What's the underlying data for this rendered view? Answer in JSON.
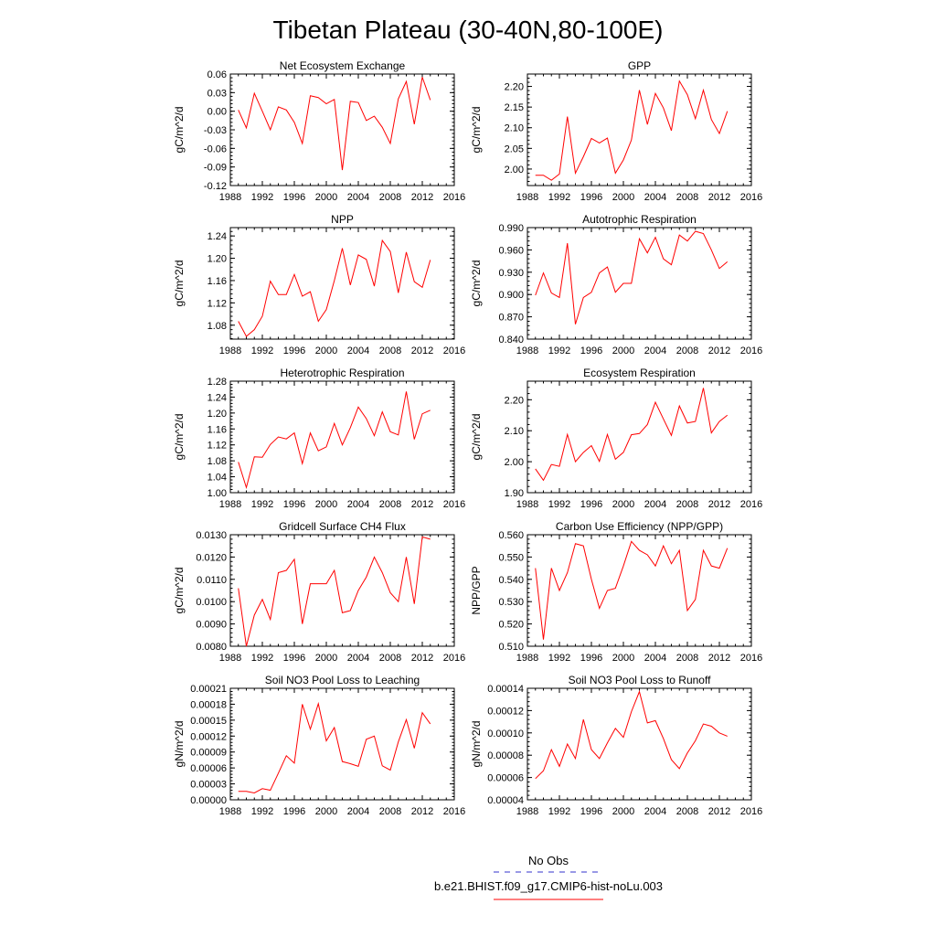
{
  "figure": {
    "title": "Tibetan Plateau (30-40N,80-100E)"
  },
  "colors": {
    "series_line": "#ff0000",
    "obs_line": "#3333cc",
    "frame": "#000000"
  },
  "legend": {
    "obs_label": "No Obs",
    "model_label": "b.e21.BHIST.f09_g17.CMIP6-hist-noLu.003"
  },
  "chart_data": [
    {
      "type": "line",
      "title": "Net Ecosystem Exchange",
      "ylabel": "gC/m^2/d",
      "xlabel": "",
      "xlim": [
        1988,
        2016
      ],
      "ylim": [
        -0.12,
        0.06
      ],
      "xticks": [
        1988,
        1992,
        1996,
        2000,
        2004,
        2008,
        2012,
        2016
      ],
      "xtick_labels": [
        "1988",
        "1992",
        "1996",
        "2000",
        "2004",
        "2008",
        "2012",
        "2016"
      ],
      "yticks": [
        -0.12,
        -0.09,
        -0.06,
        -0.03,
        0.0,
        0.03,
        0.06
      ],
      "ytick_labels": [
        "-0.12",
        "-0.09",
        "-0.06",
        "-0.03",
        "0.00",
        "0.03",
        "0.06"
      ],
      "x": [
        1989,
        1990,
        1991,
        1992,
        1993,
        1994,
        1995,
        1996,
        1997,
        1998,
        1999,
        2000,
        2001,
        2002,
        2003,
        2004,
        2005,
        2006,
        2007,
        2008,
        2009,
        2010,
        2011,
        2012,
        2013
      ],
      "values": [
        0.002,
        -0.027,
        0.029,
        0.0,
        -0.03,
        0.007,
        0.002,
        -0.018,
        -0.052,
        0.025,
        0.022,
        0.012,
        0.019,
        -0.095,
        0.016,
        0.014,
        -0.015,
        -0.008,
        -0.026,
        -0.052,
        0.02,
        0.048,
        -0.021,
        0.055,
        0.018
      ]
    },
    {
      "type": "line",
      "title": "GPP",
      "ylabel": "gC/m^2/d",
      "xlabel": "",
      "xlim": [
        1988,
        2016
      ],
      "ylim": [
        1.96,
        2.23
      ],
      "xticks": [
        1988,
        1992,
        1996,
        2000,
        2004,
        2008,
        2012,
        2016
      ],
      "xtick_labels": [
        "1988",
        "1992",
        "1996",
        "2000",
        "2004",
        "2008",
        "2012",
        "2016"
      ],
      "yticks": [
        2.0,
        2.05,
        2.1,
        2.15,
        2.2
      ],
      "ytick_labels": [
        "2.00",
        "2.05",
        "2.10",
        "2.15",
        "2.20"
      ],
      "x": [
        1989,
        1990,
        1991,
        1992,
        1993,
        1994,
        1995,
        1996,
        1997,
        1998,
        1999,
        2000,
        2001,
        2002,
        2003,
        2004,
        2005,
        2006,
        2007,
        2008,
        2009,
        2010,
        2011,
        2012,
        2013
      ],
      "values": [
        1.985,
        1.985,
        1.973,
        1.988,
        2.127,
        1.99,
        2.03,
        2.074,
        2.063,
        2.075,
        1.99,
        2.022,
        2.07,
        2.191,
        2.108,
        2.183,
        2.148,
        2.093,
        2.213,
        2.18,
        2.122,
        2.191,
        2.12,
        2.086,
        2.14
      ]
    },
    {
      "type": "line",
      "title": "NPP",
      "ylabel": "gC/m^2/d",
      "xlabel": "",
      "xlim": [
        1988,
        2016
      ],
      "ylim": [
        1.055,
        1.255
      ],
      "xticks": [
        1988,
        1992,
        1996,
        2000,
        2004,
        2008,
        2012,
        2016
      ],
      "xtick_labels": [
        "1988",
        "1992",
        "1996",
        "2000",
        "2004",
        "2008",
        "2012",
        "2016"
      ],
      "yticks": [
        1.08,
        1.12,
        1.16,
        1.2,
        1.24
      ],
      "ytick_labels": [
        "1.08",
        "1.12",
        "1.16",
        "1.20",
        "1.24"
      ],
      "x": [
        1989,
        1990,
        1991,
        1992,
        1993,
        1994,
        1995,
        1996,
        1997,
        1998,
        1999,
        2000,
        2001,
        2002,
        2003,
        2004,
        2005,
        2006,
        2007,
        2008,
        2009,
        2010,
        2011,
        2012,
        2013
      ],
      "values": [
        1.087,
        1.06,
        1.072,
        1.096,
        1.159,
        1.135,
        1.135,
        1.171,
        1.132,
        1.14,
        1.087,
        1.108,
        1.16,
        1.218,
        1.152,
        1.206,
        1.198,
        1.15,
        1.232,
        1.212,
        1.138,
        1.211,
        1.158,
        1.148,
        1.197
      ]
    },
    {
      "type": "line",
      "title": "Autotrophic Respiration",
      "ylabel": "gC/m^2/d",
      "xlabel": "",
      "xlim": [
        1988,
        2016
      ],
      "ylim": [
        0.84,
        0.99
      ],
      "xticks": [
        1988,
        1992,
        1996,
        2000,
        2004,
        2008,
        2012,
        2016
      ],
      "xtick_labels": [
        "1988",
        "1992",
        "1996",
        "2000",
        "2004",
        "2008",
        "2012",
        "2016"
      ],
      "yticks": [
        0.84,
        0.87,
        0.9,
        0.93,
        0.96,
        0.99
      ],
      "ytick_labels": [
        "0.840",
        "0.870",
        "0.900",
        "0.930",
        "0.960",
        "0.990"
      ],
      "x": [
        1989,
        1990,
        1991,
        1992,
        1993,
        1994,
        1995,
        1996,
        1997,
        1998,
        1999,
        2000,
        2001,
        2002,
        2003,
        2004,
        2005,
        2006,
        2007,
        2008,
        2009,
        2010,
        2011,
        2012,
        2013
      ],
      "values": [
        0.899,
        0.929,
        0.902,
        0.896,
        0.969,
        0.86,
        0.896,
        0.903,
        0.929,
        0.937,
        0.903,
        0.915,
        0.915,
        0.975,
        0.956,
        0.977,
        0.948,
        0.94,
        0.98,
        0.972,
        0.985,
        0.982,
        0.96,
        0.935,
        0.944
      ]
    },
    {
      "type": "line",
      "title": "Heterotrophic Respiration",
      "ylabel": "gC/m^2/d",
      "xlabel": "",
      "xlim": [
        1988,
        2016
      ],
      "ylim": [
        1.0,
        1.28
      ],
      "xticks": [
        1988,
        1992,
        1996,
        2000,
        2004,
        2008,
        2012,
        2016
      ],
      "xtick_labels": [
        "1988",
        "1992",
        "1996",
        "2000",
        "2004",
        "2008",
        "2012",
        "2016"
      ],
      "yticks": [
        1.0,
        1.04,
        1.08,
        1.12,
        1.16,
        1.2,
        1.24,
        1.28
      ],
      "ytick_labels": [
        "1.00",
        "1.04",
        "1.08",
        "1.12",
        "1.16",
        "1.20",
        "1.24",
        "1.28"
      ],
      "x": [
        1989,
        1990,
        1991,
        1992,
        1993,
        1994,
        1995,
        1996,
        1997,
        1998,
        1999,
        2000,
        2001,
        2002,
        2003,
        2004,
        2005,
        2006,
        2007,
        2008,
        2009,
        2010,
        2011,
        2012,
        2013
      ],
      "values": [
        1.077,
        1.013,
        1.09,
        1.089,
        1.121,
        1.14,
        1.135,
        1.15,
        1.073,
        1.15,
        1.105,
        1.115,
        1.174,
        1.12,
        1.163,
        1.215,
        1.186,
        1.143,
        1.203,
        1.153,
        1.145,
        1.254,
        1.134,
        1.198,
        1.207
      ]
    },
    {
      "type": "line",
      "title": "Ecosystem Respiration",
      "ylabel": "gC/m^2/d",
      "xlabel": "",
      "xlim": [
        1988,
        2016
      ],
      "ylim": [
        1.9,
        2.26
      ],
      "xticks": [
        1988,
        1992,
        1996,
        2000,
        2004,
        2008,
        2012,
        2016
      ],
      "xtick_labels": [
        "1988",
        "1992",
        "1996",
        "2000",
        "2004",
        "2008",
        "2012",
        "2016"
      ],
      "yticks": [
        1.9,
        2.0,
        2.1,
        2.2
      ],
      "ytick_labels": [
        "1.90",
        "2.00",
        "2.10",
        "2.20"
      ],
      "x": [
        1989,
        1990,
        1991,
        1992,
        1993,
        1994,
        1995,
        1996,
        1997,
        1998,
        1999,
        2000,
        2001,
        2002,
        2003,
        2004,
        2005,
        2006,
        2007,
        2008,
        2009,
        2010,
        2011,
        2012,
        2013
      ],
      "values": [
        1.977,
        1.94,
        1.991,
        1.985,
        2.088,
        2.0,
        2.03,
        2.052,
        2.001,
        2.088,
        2.008,
        2.03,
        2.087,
        2.091,
        2.12,
        2.192,
        2.138,
        2.085,
        2.18,
        2.125,
        2.13,
        2.238,
        2.093,
        2.13,
        2.15
      ]
    },
    {
      "type": "line",
      "title": "Gridcell Surface CH4 Flux",
      "ylabel": "gC/m^2/d",
      "xlabel": "",
      "xlim": [
        1988,
        2016
      ],
      "ylim": [
        0.008,
        0.013
      ],
      "xticks": [
        1988,
        1992,
        1996,
        2000,
        2004,
        2008,
        2012,
        2016
      ],
      "xtick_labels": [
        "1988",
        "1992",
        "1996",
        "2000",
        "2004",
        "2008",
        "2012",
        "2016"
      ],
      "yticks": [
        0.008,
        0.009,
        0.01,
        0.011,
        0.012,
        0.013
      ],
      "ytick_labels": [
        "0.0080",
        "0.0090",
        "0.0100",
        "0.0110",
        "0.0120",
        "0.0130"
      ],
      "x": [
        1989,
        1990,
        1991,
        1992,
        1993,
        1994,
        1995,
        1996,
        1997,
        1998,
        1999,
        2000,
        2001,
        2002,
        2003,
        2004,
        2005,
        2006,
        2007,
        2008,
        2009,
        2010,
        2011,
        2012,
        2013
      ],
      "values": [
        0.0106,
        0.008,
        0.0094,
        0.0101,
        0.0092,
        0.0113,
        0.0114,
        0.0119,
        0.009,
        0.0108,
        0.0108,
        0.0108,
        0.0114,
        0.0095,
        0.0096,
        0.0105,
        0.0111,
        0.012,
        0.0113,
        0.0104,
        0.01,
        0.012,
        0.0099,
        0.0129,
        0.0128
      ]
    },
    {
      "type": "line",
      "title": "Carbon Use Efficiency (NPP/GPP)",
      "ylabel": "NPP/GPP",
      "xlabel": "",
      "xlim": [
        1988,
        2016
      ],
      "ylim": [
        0.51,
        0.56
      ],
      "xticks": [
        1988,
        1992,
        1996,
        2000,
        2004,
        2008,
        2012,
        2016
      ],
      "xtick_labels": [
        "1988",
        "1992",
        "1996",
        "2000",
        "2004",
        "2008",
        "2012",
        "2016"
      ],
      "yticks": [
        0.51,
        0.52,
        0.53,
        0.54,
        0.55,
        0.56
      ],
      "ytick_labels": [
        "0.510",
        "0.520",
        "0.530",
        "0.540",
        "0.550",
        "0.560"
      ],
      "x": [
        1989,
        1990,
        1991,
        1992,
        1993,
        1994,
        1995,
        1996,
        1997,
        1998,
        1999,
        2000,
        2001,
        2002,
        2003,
        2004,
        2005,
        2006,
        2007,
        2008,
        2009,
        2010,
        2011,
        2012,
        2013
      ],
      "values": [
        0.545,
        0.513,
        0.545,
        0.535,
        0.543,
        0.556,
        0.555,
        0.54,
        0.527,
        0.535,
        0.536,
        0.546,
        0.557,
        0.553,
        0.551,
        0.546,
        0.555,
        0.547,
        0.553,
        0.526,
        0.531,
        0.553,
        0.546,
        0.545,
        0.554
      ]
    },
    {
      "type": "line",
      "title": "Soil NO3 Pool Loss to Leaching",
      "ylabel": "gN/m^2/d",
      "xlabel": "",
      "xlim": [
        1988,
        2016
      ],
      "ylim": [
        0.0,
        0.00021
      ],
      "xticks": [
        1988,
        1992,
        1996,
        2000,
        2004,
        2008,
        2012,
        2016
      ],
      "xtick_labels": [
        "1988",
        "1992",
        "1996",
        "2000",
        "2004",
        "2008",
        "2012",
        "2016"
      ],
      "yticks": [
        0.0,
        3e-05,
        6e-05,
        9e-05,
        0.00012,
        0.00015,
        0.00018,
        0.00021
      ],
      "ytick_labels": [
        "0.00000",
        "0.00003",
        "0.00006",
        "0.00009",
        "0.00012",
        "0.00015",
        "0.00018",
        "0.00021"
      ],
      "x": [
        1989,
        1990,
        1991,
        1992,
        1993,
        1994,
        1995,
        1996,
        1997,
        1998,
        1999,
        2000,
        2001,
        2002,
        2003,
        2004,
        2005,
        2006,
        2007,
        2008,
        2009,
        2010,
        2011,
        2012,
        2013
      ],
      "values": [
        1.6e-05,
        1.6e-05,
        1.3e-05,
        2.1e-05,
        1.8e-05,
        5e-05,
        8.3e-05,
        6.9e-05,
        0.00018,
        0.000133,
        0.000181,
        0.000111,
        0.000136,
        7.2e-05,
        6.8e-05,
        6.3e-05,
        0.000114,
        0.00012,
        6.4e-05,
        5.6e-05,
        0.000109,
        0.000151,
        9.7e-05,
        0.000164,
        0.000143
      ]
    },
    {
      "type": "line",
      "title": "Soil NO3 Pool Loss to Runoff",
      "ylabel": "gN/m^2/d",
      "xlabel": "",
      "xlim": [
        1988,
        2016
      ],
      "ylim": [
        4e-05,
        0.00014
      ],
      "xticks": [
        1988,
        1992,
        1996,
        2000,
        2004,
        2008,
        2012,
        2016
      ],
      "xtick_labels": [
        "1988",
        "1992",
        "1996",
        "2000",
        "2004",
        "2008",
        "2012",
        "2016"
      ],
      "yticks": [
        4e-05,
        6e-05,
        8e-05,
        0.0001,
        0.00012,
        0.00014
      ],
      "ytick_labels": [
        "0.00004",
        "0.00006",
        "0.00008",
        "0.00010",
        "0.00012",
        "0.00014"
      ],
      "x": [
        1989,
        1990,
        1991,
        1992,
        1993,
        1994,
        1995,
        1996,
        1997,
        1998,
        1999,
        2000,
        2001,
        2002,
        2003,
        2004,
        2005,
        2006,
        2007,
        2008,
        2009,
        2010,
        2011,
        2012,
        2013
      ],
      "values": [
        5.9e-05,
        6.6e-05,
        8.5e-05,
        7e-05,
        9e-05,
        7.7e-05,
        0.000112,
        8.5e-05,
        7.7e-05,
        9.1e-05,
        0.000104,
        9.6e-05,
        0.000119,
        0.000137,
        0.000109,
        0.000111,
        9.5e-05,
        7.6e-05,
        6.8e-05,
        8.2e-05,
        9.3e-05,
        0.000108,
        0.000106,
        0.0001,
        9.7e-05
      ]
    }
  ]
}
